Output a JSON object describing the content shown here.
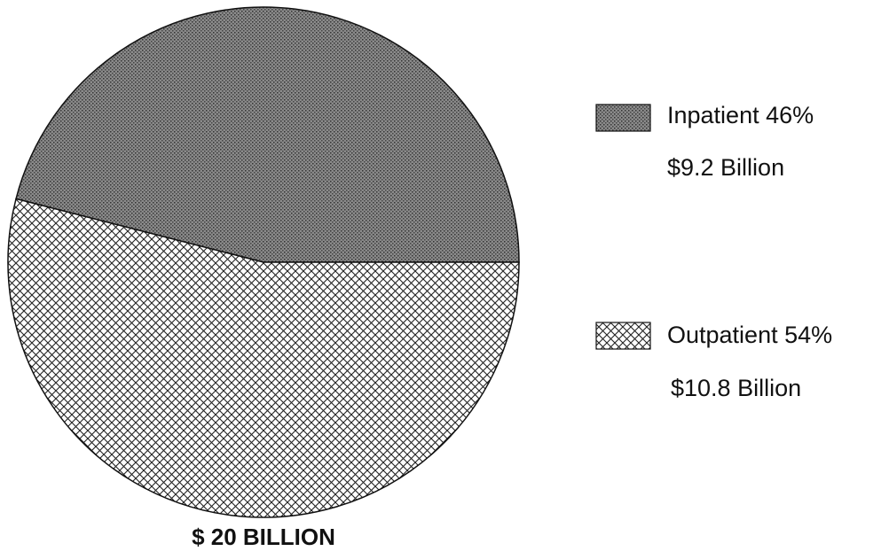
{
  "chart_data": {
    "type": "pie",
    "categories": [
      "Inpatient",
      "Outpatient"
    ],
    "values": [
      46,
      54
    ],
    "value_labels": [
      "46%",
      "54%"
    ],
    "amount_labels": [
      "$9.2 Billion",
      "$10.8 Billion"
    ],
    "patterns": [
      "stipple",
      "crosshatch"
    ],
    "colors": [
      "#7d7d7d",
      "#ffffff"
    ],
    "total_label": "$ 20 BILLION"
  }
}
